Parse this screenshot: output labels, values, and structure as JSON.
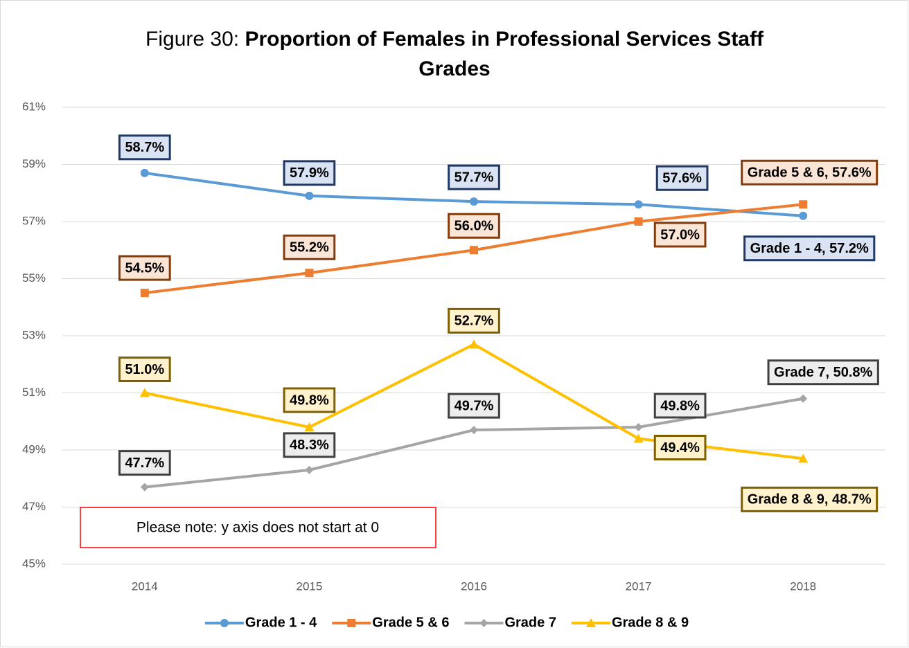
{
  "chart_data": {
    "type": "line",
    "title_prefix": "Figure 30:",
    "title": "Proportion of Females in Professional Services Staff Grades",
    "annotation": "Please note: y axis does not start at 0",
    "categories": [
      "2014",
      "2015",
      "2016",
      "2017",
      "2018"
    ],
    "ylim": [
      45,
      61
    ],
    "yticks": [
      {
        "value": 45,
        "label": "45%"
      },
      {
        "value": 47,
        "label": "47%"
      },
      {
        "value": 49,
        "label": "49%"
      },
      {
        "value": 51,
        "label": "51%"
      },
      {
        "value": 53,
        "label": "53%"
      },
      {
        "value": 55,
        "label": "55%"
      },
      {
        "value": 57,
        "label": "57%"
      },
      {
        "value": 59,
        "label": "59%"
      },
      {
        "value": 61,
        "label": "61%"
      }
    ],
    "grid": true,
    "legend": "bottom",
    "series": [
      {
        "name": "Grade 1 - 4",
        "color": "#5b9bd5",
        "marker": "circle",
        "values": [
          58.7,
          57.9,
          57.7,
          57.6,
          57.2
        ],
        "value_labels": [
          "58.7%",
          "57.9%",
          "57.7%",
          "57.6%",
          "Grade 1 - 4, 57.2%"
        ]
      },
      {
        "name": "Grade 5 & 6",
        "color": "#ed7d31",
        "marker": "square",
        "values": [
          54.5,
          55.2,
          56.0,
          57.0,
          57.6
        ],
        "value_labels": [
          "54.5%",
          "55.2%",
          "56.0%",
          "57.0%",
          "Grade 5 & 6, 57.6%"
        ]
      },
      {
        "name": "Grade 7",
        "color": "#a5a5a5",
        "marker": "diamond",
        "values": [
          47.7,
          48.3,
          49.7,
          49.8,
          50.8
        ],
        "value_labels": [
          "47.7%",
          "48.3%",
          "49.7%",
          "49.8%",
          "Grade 7, 50.8%"
        ]
      },
      {
        "name": "Grade 8 & 9",
        "color": "#ffc000",
        "marker": "triangle",
        "values": [
          51.0,
          49.8,
          52.7,
          49.4,
          48.7
        ],
        "value_labels": [
          "51.0%",
          "49.8%",
          "52.7%",
          "49.4%",
          "Grade 8 & 9, 48.7%"
        ]
      }
    ]
  }
}
